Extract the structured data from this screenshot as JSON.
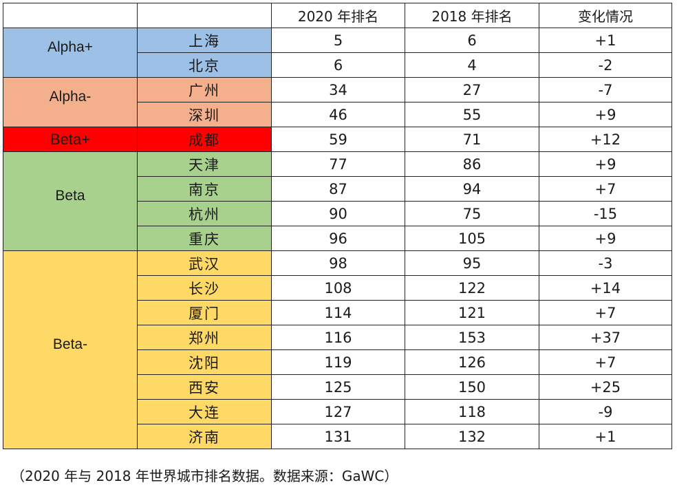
{
  "colors": {
    "alpha_plus": "#9dc0e6",
    "alpha_minus": "#f4b08c",
    "beta_plus": "#ff0000",
    "beta": "#a9d18e",
    "beta_minus": "#ffd966",
    "grid": "#222222",
    "header_bg": "#ffffff"
  },
  "table": {
    "headers": [
      "",
      "",
      "2020 年排名",
      "2018 年排名",
      "变化情况"
    ],
    "tiers": [
      {
        "label": "Alpha+",
        "color_key": "alpha_plus",
        "rows": [
          {
            "city": "上海",
            "rank_2020": "5",
            "rank_2018": "6",
            "change": "+1"
          },
          {
            "city": "北京",
            "rank_2020": "6",
            "rank_2018": "4",
            "change": "-2"
          }
        ]
      },
      {
        "label": "Alpha-",
        "color_key": "alpha_minus",
        "rows": [
          {
            "city": "广州",
            "rank_2020": "34",
            "rank_2018": "27",
            "change": "-7"
          },
          {
            "city": "深圳",
            "rank_2020": "46",
            "rank_2018": "55",
            "change": "+9"
          }
        ]
      },
      {
        "label": "Beta+",
        "color_key": "beta_plus",
        "rows": [
          {
            "city": "成都",
            "rank_2020": "59",
            "rank_2018": "71",
            "change": "+12"
          }
        ]
      },
      {
        "label": "Beta",
        "color_key": "beta",
        "rows": [
          {
            "city": "天津",
            "rank_2020": "77",
            "rank_2018": "86",
            "change": "+9"
          },
          {
            "city": "南京",
            "rank_2020": "87",
            "rank_2018": "94",
            "change": "+7"
          },
          {
            "city": "杭州",
            "rank_2020": "90",
            "rank_2018": "75",
            "change": "-15"
          },
          {
            "city": "重庆",
            "rank_2020": "96",
            "rank_2018": "105",
            "change": "+9"
          }
        ]
      },
      {
        "label": "Beta-",
        "color_key": "beta_minus",
        "rows": [
          {
            "city": "武汉",
            "rank_2020": "98",
            "rank_2018": "95",
            "change": "-3"
          },
          {
            "city": "长沙",
            "rank_2020": "108",
            "rank_2018": "122",
            "change": "+14"
          },
          {
            "city": "厦门",
            "rank_2020": "114",
            "rank_2018": "121",
            "change": "+7"
          },
          {
            "city": "郑州",
            "rank_2020": "116",
            "rank_2018": "153",
            "change": "+37"
          },
          {
            "city": "沈阳",
            "rank_2020": "119",
            "rank_2018": "126",
            "change": "+7"
          },
          {
            "city": "西安",
            "rank_2020": "125",
            "rank_2018": "150",
            "change": "+25"
          },
          {
            "city": "大连",
            "rank_2020": "127",
            "rank_2018": "118",
            "change": "-9"
          },
          {
            "city": "济南",
            "rank_2020": "131",
            "rank_2018": "132",
            "change": "+1"
          }
        ]
      }
    ]
  },
  "caption": "（2020 年与 2018 年世界城市排名数据。数据来源：GaWC）"
}
